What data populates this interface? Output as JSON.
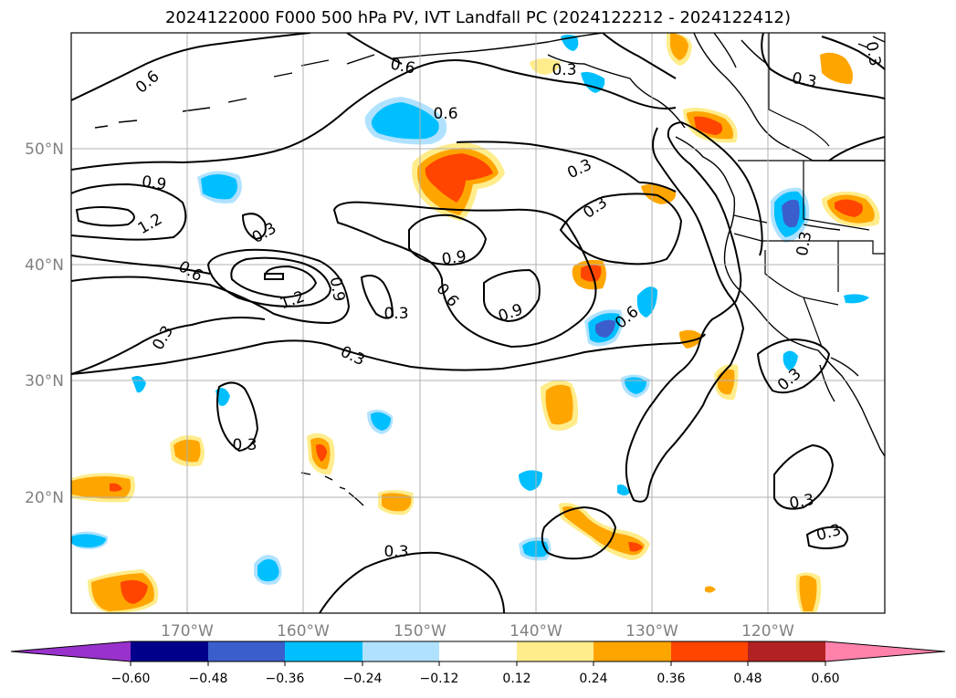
{
  "title": "2024122000 F000 500 hPa PV, IVT Landfall PC (2024122212 - 2024122412)",
  "map": {
    "lon_labels": [
      "170°W",
      "160°W",
      "150°W",
      "140°W",
      "130°W",
      "120°W"
    ],
    "lat_labels": [
      "50°N",
      "40°N",
      "30°N",
      "20°N"
    ],
    "contour_labels": [
      "0.6",
      "0.6",
      "0.3",
      "0.6",
      "0.9",
      "1.2",
      "0.3",
      "0.3",
      "0.6",
      "0.9",
      "1.2",
      "0.3",
      "0.3",
      "0.3",
      "0.9",
      "0.6",
      "0.9",
      "0.3",
      "0.3",
      "0.6",
      "0.3",
      "0.3",
      "0.3",
      "0.3",
      "0.3",
      "0.3",
      "0.3"
    ],
    "colors": {
      "contour": "#000000",
      "coast": "#000000",
      "grid": "#b0b0b0"
    }
  },
  "colorbar": {
    "tick_labels": [
      "−0.60",
      "−0.48",
      "−0.36",
      "−0.24",
      "−0.12",
      "0.12",
      "0.24",
      "0.36",
      "0.48",
      "0.60"
    ],
    "colors": [
      "#9932cc",
      "#00008b",
      "#3a5fcd",
      "#00bfff",
      "#b0e2ff",
      "#ffffff",
      "#ffec8b",
      "#ffa500",
      "#ff4500",
      "#b22222",
      "#ff82ab"
    ]
  }
}
